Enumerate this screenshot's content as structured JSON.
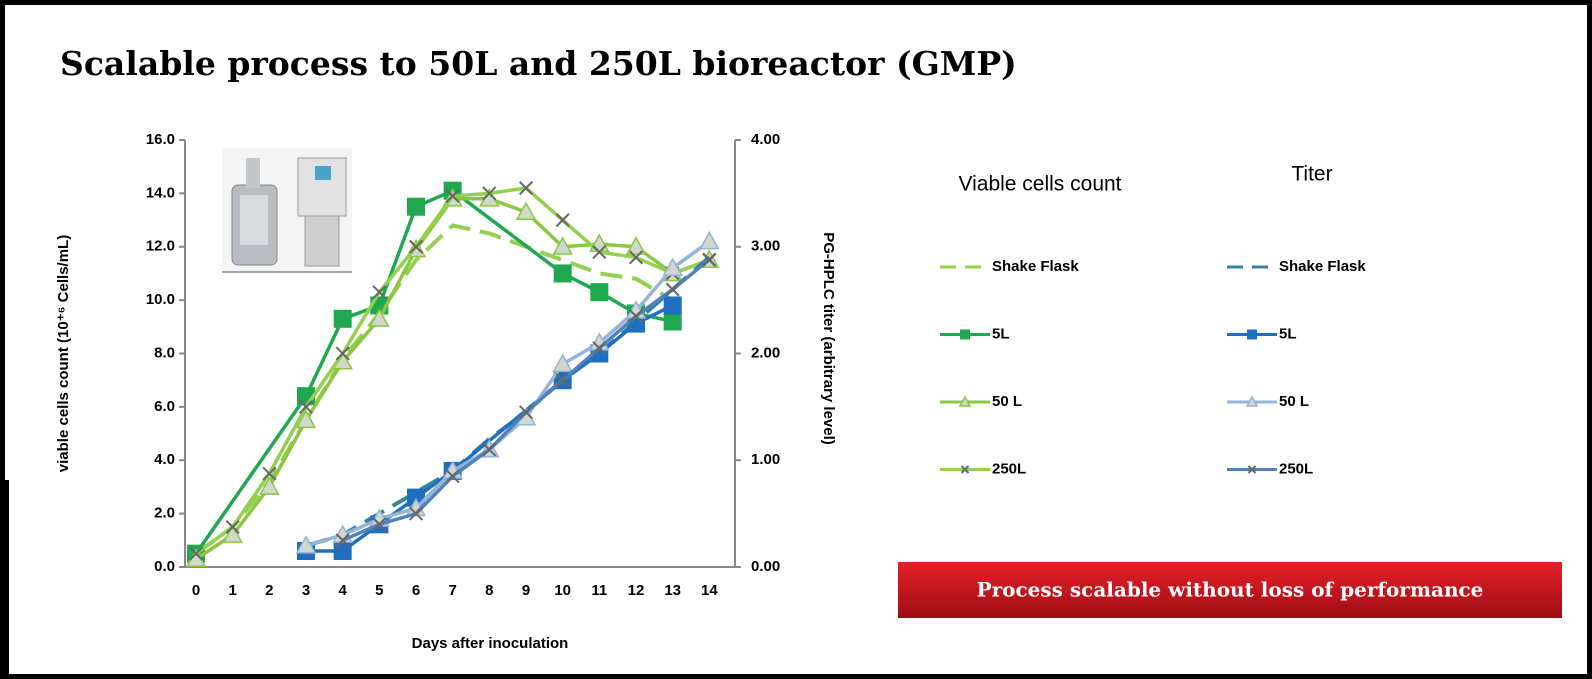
{
  "slide": {
    "title": "Scalable process to 50L and 250L bioreactor (GMP)",
    "banner": "Process scalable without loss of performance"
  },
  "chart_data": {
    "type": "line",
    "xlabel": "Days after inoculation",
    "ylabel": "viable cells count (10⁺⁶ Cells/mL)",
    "y2label": "PG-HPLC titer (arbitrary level)",
    "legend_titles": [
      "Viable cells count",
      "Titer"
    ],
    "xlim": [
      -0.3,
      14.7
    ],
    "xticks": [
      0,
      1,
      2,
      3,
      4,
      5,
      6,
      7,
      8,
      9,
      10,
      11,
      12,
      13,
      14
    ],
    "ylim": [
      0,
      16
    ],
    "yticks": [
      {
        "value": 0,
        "label": "0.0"
      },
      {
        "value": 2,
        "label": "2.0"
      },
      {
        "value": 4,
        "label": "4.0"
      },
      {
        "value": 6,
        "label": "6.0"
      },
      {
        "value": 8,
        "label": "8.0"
      },
      {
        "value": 10,
        "label": "10.0"
      },
      {
        "value": 12,
        "label": "12.0"
      },
      {
        "value": 14,
        "label": "14.0"
      },
      {
        "value": 16,
        "label": "16.0"
      }
    ],
    "y2lim": [
      0,
      4
    ],
    "y2ticks": [
      {
        "value": 0,
        "label": "0.00"
      },
      {
        "value": 1,
        "label": "1.00"
      },
      {
        "value": 2,
        "label": "2.00"
      },
      {
        "value": 3,
        "label": "3.00"
      },
      {
        "value": 4,
        "label": "4.00"
      }
    ],
    "series": [
      {
        "name": "Shake Flask",
        "color": "#92d050",
        "dashed": true,
        "marker": "none",
        "x": [
          0,
          1,
          2,
          3,
          4,
          5,
          6,
          7,
          8,
          9,
          10,
          11,
          12,
          13
        ],
        "values": [
          0.5,
          1.5,
          3.2,
          5.5,
          7.8,
          9.5,
          11.5,
          12.8,
          12.5,
          12.0,
          11.5,
          11.0,
          10.8,
          10.0
        ]
      },
      {
        "name": "5L",
        "color": "#1fa84f",
        "dashed": false,
        "marker": "square",
        "x": [
          0,
          3,
          4,
          5,
          6,
          7,
          10,
          11,
          12,
          13
        ],
        "values": [
          0.5,
          6.4,
          9.3,
          9.8,
          13.5,
          14.1,
          11.0,
          10.3,
          9.5,
          9.2
        ]
      },
      {
        "name": "50 L",
        "color": "#8cc63f",
        "dashed": false,
        "marker": "triangle",
        "x": [
          0,
          1,
          2,
          3,
          4,
          5,
          6,
          7,
          8,
          9,
          10,
          11,
          12,
          13,
          14
        ],
        "values": [
          0.3,
          1.2,
          3.0,
          5.5,
          7.7,
          9.3,
          11.9,
          13.8,
          13.8,
          13.3,
          12.0,
          12.1,
          12.0,
          11.0,
          11.5
        ]
      },
      {
        "name": "250L",
        "color": "#92d050",
        "dashed": false,
        "marker": "x",
        "x": [
          0,
          1,
          2,
          3,
          4,
          5,
          6,
          7,
          8,
          9,
          10,
          11,
          12,
          13,
          14
        ],
        "values": [
          0.5,
          1.5,
          3.5,
          6.0,
          8.0,
          10.3,
          12.0,
          13.9,
          14.0,
          14.2,
          13.0,
          11.8,
          11.6,
          11.0,
          11.5
        ]
      },
      {
        "name": "Shake Flask",
        "axis": "y2",
        "color": "#31859c",
        "dashed": true,
        "marker": "none",
        "x": [
          3,
          4,
          5,
          6,
          7,
          8,
          9,
          10,
          11,
          12,
          13,
          14
        ],
        "values": [
          0.2,
          0.3,
          0.5,
          0.7,
          0.9,
          1.2,
          1.45,
          1.75,
          2.0,
          2.3,
          2.6,
          2.9
        ]
      },
      {
        "name": "5L",
        "axis": "y2",
        "color": "#1f6fc0",
        "dashed": false,
        "marker": "square",
        "x": [
          3,
          4,
          5,
          6,
          7,
          10,
          11,
          12,
          13
        ],
        "values": [
          0.15,
          0.15,
          0.4,
          0.65,
          0.9,
          1.75,
          2.0,
          2.28,
          2.45
        ]
      },
      {
        "name": "50 L",
        "axis": "y2",
        "color": "#95b3d7",
        "dashed": false,
        "marker": "triangle",
        "x": [
          3,
          4,
          5,
          6,
          7,
          8,
          9,
          10,
          11,
          12,
          13,
          14
        ],
        "values": [
          0.2,
          0.3,
          0.45,
          0.55,
          0.9,
          1.1,
          1.4,
          1.9,
          2.1,
          2.4,
          2.8,
          3.05
        ]
      },
      {
        "name": "250L",
        "axis": "y2",
        "color": "#4f81bd",
        "dashed": false,
        "marker": "x",
        "x": [
          4,
          5,
          6,
          7,
          8,
          9,
          10,
          11,
          12,
          13,
          14
        ],
        "values": [
          0.25,
          0.4,
          0.5,
          0.85,
          1.1,
          1.45,
          1.75,
          2.05,
          2.35,
          2.6,
          2.88
        ]
      }
    ]
  }
}
